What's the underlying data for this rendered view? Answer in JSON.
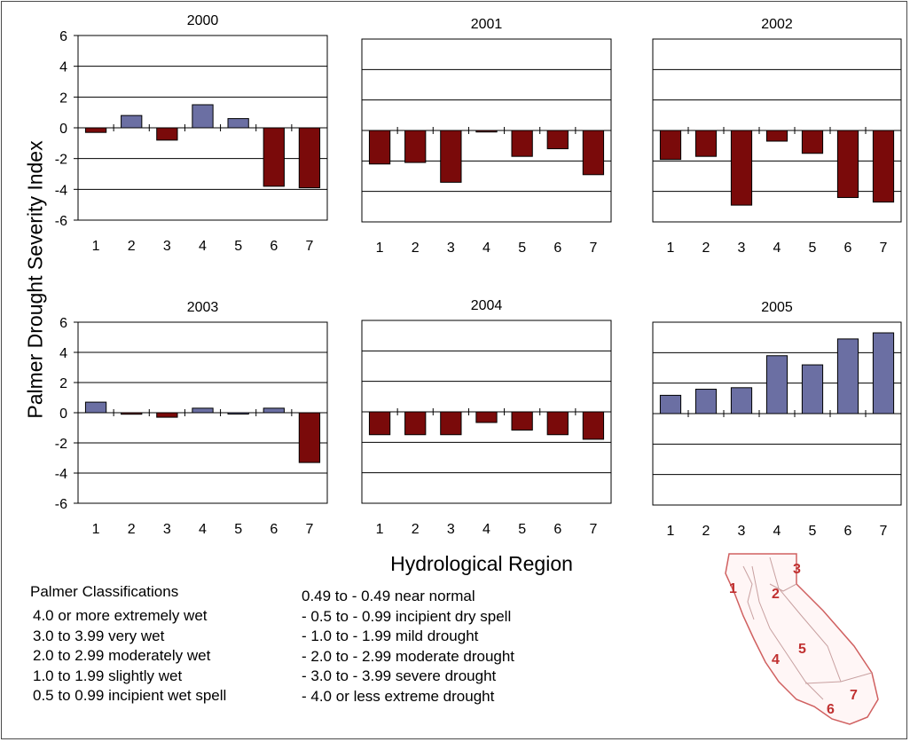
{
  "axis_labels": {
    "y": "Palmer Drought Severity Index",
    "x": "Hydrological Region"
  },
  "colors": {
    "positive": "#6b6fa3",
    "negative": "#7a0a0a"
  },
  "legend": {
    "title": "Palmer Classifications",
    "left_items": [
      "4.0 or more extremely wet",
      "3.0 to 3.99 very wet",
      "2.0 to 2.99 moderately wet",
      "1.0 to 1.99 slightly wet",
      "0.5 to 0.99 incipient wet spell"
    ],
    "right_items": [
      "0.49 to - 0.49 near normal",
      "- 0.5 to - 0.99 incipient dry spell",
      "- 1.0 to - 1.99 mild drought",
      "- 2.0 to - 2.99 moderate drought",
      "- 3.0 to - 3.99 severe drought",
      "- 4.0 or less extreme drought"
    ]
  },
  "map": {
    "region_numbers": [
      "1",
      "2",
      "3",
      "4",
      "5",
      "6",
      "7"
    ]
  },
  "chart_data": [
    {
      "type": "bar",
      "title": "2000",
      "categories": [
        "1",
        "2",
        "3",
        "4",
        "5",
        "6",
        "7"
      ],
      "values": [
        -0.3,
        0.8,
        -0.8,
        1.5,
        0.6,
        -3.8,
        -3.9
      ],
      "ylim": [
        -6,
        6
      ],
      "yticks": [
        "6",
        "4",
        "2",
        "0",
        "-2",
        "-4",
        "-6"
      ],
      "grid": true
    },
    {
      "type": "bar",
      "title": "2001",
      "categories": [
        "1",
        "2",
        "3",
        "4",
        "5",
        "6",
        "7"
      ],
      "values": [
        -2.2,
        -2.1,
        -3.4,
        -0.1,
        -1.7,
        -1.2,
        -2.9
      ],
      "ylim": [
        -6,
        6
      ],
      "grid": true
    },
    {
      "type": "bar",
      "title": "2002",
      "categories": [
        "1",
        "2",
        "3",
        "4",
        "5",
        "6",
        "7"
      ],
      "values": [
        -1.9,
        -1.7,
        -4.9,
        -0.7,
        -1.5,
        -4.4,
        -4.7
      ],
      "ylim": [
        -6,
        6
      ],
      "grid": true
    },
    {
      "type": "bar",
      "title": "2003",
      "categories": [
        "1",
        "2",
        "3",
        "4",
        "5",
        "6",
        "7"
      ],
      "values": [
        0.7,
        -0.1,
        -0.3,
        0.3,
        0.0,
        0.3,
        -3.3
      ],
      "ylim": [
        -6,
        6
      ],
      "yticks": [
        "6",
        "4",
        "2",
        "0",
        "-2",
        "-4",
        "-6"
      ],
      "grid": true
    },
    {
      "type": "bar",
      "title": "2004",
      "categories": [
        "1",
        "2",
        "3",
        "4",
        "5",
        "6",
        "7"
      ],
      "values": [
        -1.5,
        -1.5,
        -1.5,
        -0.7,
        -1.2,
        -1.5,
        -1.8
      ],
      "ylim": [
        -6,
        6
      ],
      "grid": true
    },
    {
      "type": "bar",
      "title": "2005",
      "categories": [
        "1",
        "2",
        "3",
        "4",
        "5",
        "6",
        "7"
      ],
      "values": [
        1.2,
        1.6,
        1.7,
        3.8,
        3.2,
        4.9,
        5.3
      ],
      "ylim": [
        -6,
        6
      ],
      "grid": true
    }
  ]
}
